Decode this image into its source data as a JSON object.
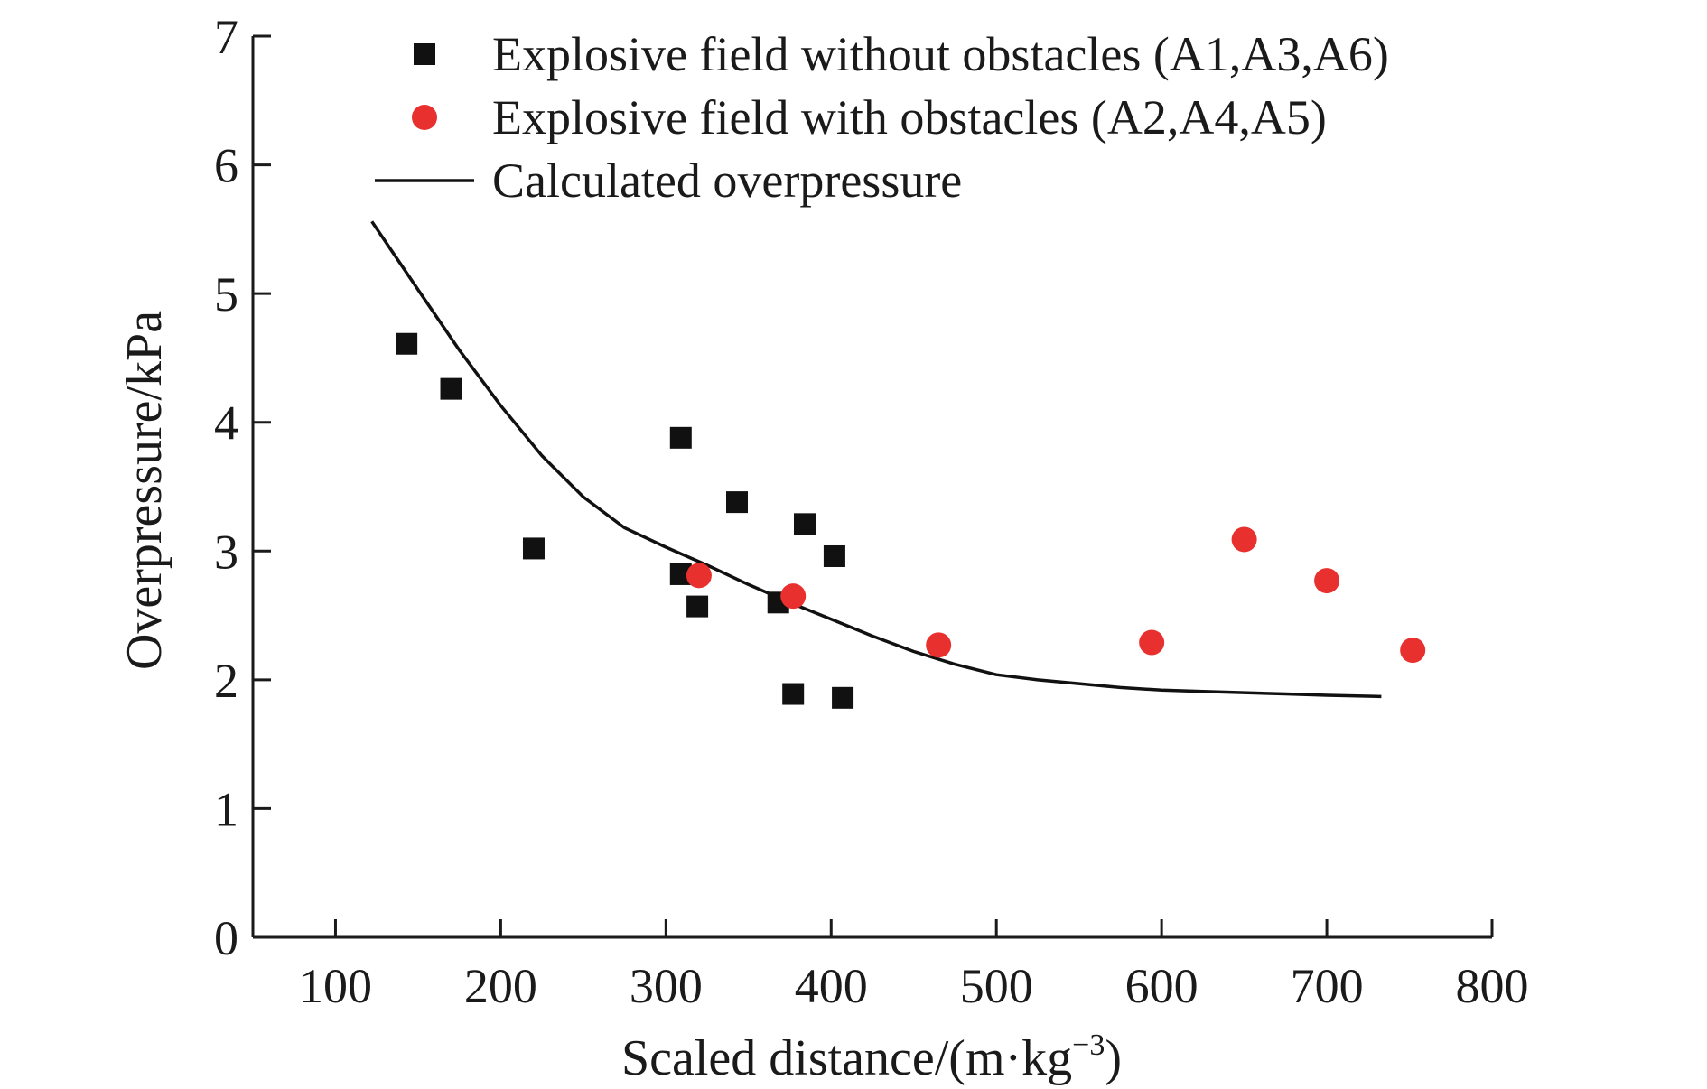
{
  "chart_data": {
    "type": "scatter",
    "xlabel": "Scaled distance/(m·kg",
    "xlabel_sup": "−3",
    "xlabel_tail": ")",
    "ylabel": "Overpressure/kPa",
    "xlim": [
      50,
      800
    ],
    "ylim": [
      0,
      7
    ],
    "xticks": [
      100,
      200,
      300,
      400,
      500,
      600,
      700,
      800
    ],
    "yticks": [
      0,
      1,
      2,
      3,
      4,
      5,
      6,
      7
    ],
    "grid": false,
    "legend_position": "top",
    "series": [
      {
        "name": "Explosive field without obstacles (A1,A3,A6)",
        "marker": "square",
        "color": "#111111",
        "points": [
          {
            "x": 143,
            "y": 4.61
          },
          {
            "x": 170,
            "y": 4.26
          },
          {
            "x": 220,
            "y": 3.02
          },
          {
            "x": 309,
            "y": 3.88
          },
          {
            "x": 309,
            "y": 2.82
          },
          {
            "x": 319,
            "y": 2.57
          },
          {
            "x": 343,
            "y": 3.38
          },
          {
            "x": 368,
            "y": 2.6
          },
          {
            "x": 377,
            "y": 1.89
          },
          {
            "x": 384,
            "y": 3.21
          },
          {
            "x": 402,
            "y": 2.96
          },
          {
            "x": 407,
            "y": 1.86
          }
        ]
      },
      {
        "name": "Explosive field with obstacles (A2,A4,A5)",
        "marker": "circle",
        "color": "#e8302e",
        "points": [
          {
            "x": 320,
            "y": 2.81
          },
          {
            "x": 377,
            "y": 2.65
          },
          {
            "x": 465,
            "y": 2.27
          },
          {
            "x": 594,
            "y": 2.29
          },
          {
            "x": 650,
            "y": 3.09
          },
          {
            "x": 700,
            "y": 2.77
          },
          {
            "x": 752,
            "y": 2.23
          }
        ]
      },
      {
        "name": "Calculated overpressure",
        "marker": "line",
        "color": "#111111",
        "points": [
          {
            "x": 122,
            "y": 5.56
          },
          {
            "x": 150,
            "y": 5.03
          },
          {
            "x": 175,
            "y": 4.56
          },
          {
            "x": 200,
            "y": 4.13
          },
          {
            "x": 225,
            "y": 3.74
          },
          {
            "x": 250,
            "y": 3.42
          },
          {
            "x": 275,
            "y": 3.18
          },
          {
            "x": 300,
            "y": 3.03
          },
          {
            "x": 325,
            "y": 2.89
          },
          {
            "x": 350,
            "y": 2.74
          },
          {
            "x": 375,
            "y": 2.6
          },
          {
            "x": 400,
            "y": 2.47
          },
          {
            "x": 425,
            "y": 2.34
          },
          {
            "x": 450,
            "y": 2.22
          },
          {
            "x": 475,
            "y": 2.12
          },
          {
            "x": 500,
            "y": 2.04
          },
          {
            "x": 525,
            "y": 2.0
          },
          {
            "x": 550,
            "y": 1.97
          },
          {
            "x": 575,
            "y": 1.94
          },
          {
            "x": 600,
            "y": 1.92
          },
          {
            "x": 625,
            "y": 1.91
          },
          {
            "x": 650,
            "y": 1.9
          },
          {
            "x": 675,
            "y": 1.89
          },
          {
            "x": 700,
            "y": 1.88
          },
          {
            "x": 733,
            "y": 1.87
          }
        ]
      }
    ]
  }
}
